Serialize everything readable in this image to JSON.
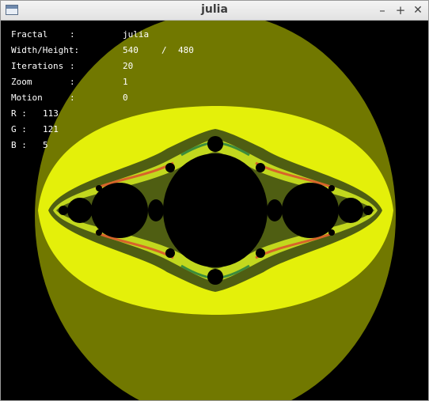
{
  "window": {
    "title": "julia",
    "controls": {
      "minimize": "–",
      "maximize": "+",
      "close": "✕"
    }
  },
  "info": {
    "fractal_label": "Fractal",
    "fractal_sep": ":",
    "fractal_value": "julia",
    "size_label": "Width/Height:",
    "width_value": "540",
    "size_slash": "/",
    "height_value": "480",
    "iterations_label": "Iterations",
    "iterations_sep": ":",
    "iterations_value": "20",
    "zoom_label": "Zoom",
    "zoom_sep": ":",
    "zoom_value": "1",
    "motion_label": "Motion",
    "motion_sep": ":",
    "motion_value": "0",
    "r_label": "R :",
    "r_value": "113",
    "g_label": "G :",
    "g_value": "121",
    "b_label": "B :",
    "b_value": "5"
  },
  "colors": {
    "outer_band": "#717800",
    "bright_band": "#e4f00a",
    "mid_band": "#c2d81e",
    "dark_band": "#4f5e12",
    "fringe_orange": "#d8642a",
    "fringe_green": "#3c8c3c",
    "interior": "#000000"
  }
}
